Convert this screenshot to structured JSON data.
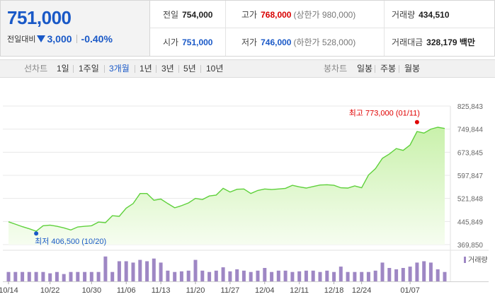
{
  "quote": {
    "price": "751,000",
    "change_label": "전일대비",
    "change_value": "3,000",
    "change_pct": "-0.40%",
    "prev_close_label": "전일",
    "prev_close": "754,000",
    "high_label": "고가",
    "high": "768,000",
    "upper_limit": "(상한가 980,000)",
    "volume_label": "거래량",
    "volume": "434,510",
    "open_label": "시가",
    "open": "751,000",
    "low_label": "저가",
    "low": "746,000",
    "lower_limit": "(하한가 528,000)",
    "amount_label": "거래대금",
    "amount": "328,179 백만",
    "colors": {
      "up": "#d80000",
      "down": "#1a59c7"
    }
  },
  "periods": {
    "line_label": "선차트",
    "items": [
      "1일",
      "1주일",
      "3개월",
      "1년",
      "3년",
      "5년",
      "10년"
    ],
    "selected": "3개월",
    "candle_label": "봉차트",
    "candle_items": [
      "일봉",
      "주봉",
      "월봉"
    ]
  },
  "chart_data": {
    "type": "area",
    "y_ticks": [
      "825,843",
      "749,844",
      "673,845",
      "597,847",
      "521,848",
      "445,849",
      "369,850"
    ],
    "ylim": [
      369850,
      825843
    ],
    "x_ticks": [
      "10/14",
      "10/22",
      "10/30",
      "11/06",
      "11/13",
      "11/20",
      "11/27",
      "12/04",
      "12/11",
      "12/18",
      "12/24",
      "01/07"
    ],
    "x_tick_index": [
      0,
      6,
      12,
      17,
      22,
      27,
      32,
      37,
      42,
      47,
      51,
      58
    ],
    "price_series": [
      445000,
      437000,
      429000,
      422000,
      414000,
      432000,
      434000,
      430000,
      425000,
      418000,
      428000,
      430000,
      432000,
      444000,
      442000,
      465000,
      463000,
      490000,
      505000,
      538000,
      538000,
      516000,
      520000,
      505000,
      491000,
      498000,
      507000,
      522000,
      518000,
      530000,
      533000,
      555000,
      543000,
      552000,
      553000,
      538000,
      548000,
      553000,
      551000,
      553000,
      555000,
      565000,
      560000,
      556000,
      561000,
      566000,
      567000,
      565000,
      557000,
      556000,
      563000,
      557000,
      599000,
      620000,
      654000,
      668000,
      686000,
      680000,
      698000,
      742000,
      737000,
      750000,
      756000,
      752000
    ],
    "volume_series": [
      14,
      14,
      14,
      14,
      14,
      14,
      12,
      14,
      11,
      14,
      14,
      14,
      14,
      14,
      37,
      14,
      30,
      30,
      28,
      32,
      30,
      34,
      28,
      16,
      14,
      15,
      16,
      32,
      16,
      14,
      16,
      21,
      15,
      18,
      16,
      14,
      16,
      20,
      14,
      16,
      16,
      14,
      15,
      16,
      16,
      14,
      16,
      14,
      22,
      14,
      14,
      14,
      14,
      16,
      28,
      20,
      18,
      20,
      22,
      28,
      30,
      28,
      18,
      14
    ],
    "vmax": 40,
    "high_marker": {
      "label": "최고",
      "value": "773,000",
      "date": "(01/11)",
      "index": 59,
      "price": 773000
    },
    "low_marker": {
      "label": "최저",
      "value": "406,500",
      "date": "(10/20)",
      "index": 4,
      "price": 406500
    },
    "volume_legend": "거래량",
    "colors": {
      "line": "#5fd13c",
      "fill_top": "#c9f1ab",
      "fill_bottom": "#f6fdf0",
      "volume": "#9e87c4",
      "high": "#e00000",
      "low": "#1a59c7",
      "grid": "#e8e8e8"
    }
  }
}
